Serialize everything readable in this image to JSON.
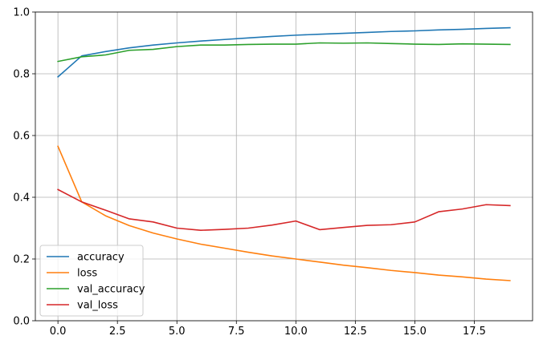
{
  "chart_data": {
    "type": "line",
    "title": "",
    "xlabel": "",
    "ylabel": "",
    "xlim": [
      -0.95,
      19.95
    ],
    "ylim": [
      0,
      1.0
    ],
    "grid": true,
    "legend_position": "lower-left",
    "x": [
      0,
      1,
      2,
      3,
      4,
      5,
      6,
      7,
      8,
      9,
      10,
      11,
      12,
      13,
      14,
      15,
      16,
      17,
      18,
      19
    ],
    "xticks": [
      "0.0",
      "2.5",
      "5.0",
      "7.5",
      "10.0",
      "12.5",
      "15.0",
      "17.5"
    ],
    "xtick_values": [
      0,
      2.5,
      5,
      7.5,
      10,
      12.5,
      15,
      17.5
    ],
    "yticks": [
      "0.0",
      "0.2",
      "0.4",
      "0.6",
      "0.8",
      "1.0"
    ],
    "ytick_values": [
      0,
      0.2,
      0.4,
      0.6,
      0.8,
      1.0
    ],
    "series": [
      {
        "name": "accuracy",
        "color": "#1f77b4",
        "values": [
          0.79,
          0.858,
          0.872,
          0.884,
          0.893,
          0.9,
          0.906,
          0.911,
          0.916,
          0.921,
          0.925,
          0.928,
          0.931,
          0.934,
          0.937,
          0.939,
          0.942,
          0.944,
          0.947,
          0.949
        ]
      },
      {
        "name": "loss",
        "color": "#ff7f0e",
        "values": [
          0.565,
          0.385,
          0.34,
          0.308,
          0.284,
          0.265,
          0.248,
          0.235,
          0.222,
          0.21,
          0.2,
          0.19,
          0.18,
          0.172,
          0.163,
          0.156,
          0.148,
          0.142,
          0.135,
          0.13
        ]
      },
      {
        "name": "val_accuracy",
        "color": "#2ca02c",
        "values": [
          0.84,
          0.855,
          0.861,
          0.876,
          0.879,
          0.888,
          0.893,
          0.893,
          0.895,
          0.896,
          0.896,
          0.9,
          0.899,
          0.9,
          0.898,
          0.896,
          0.895,
          0.897,
          0.896,
          0.895
        ]
      },
      {
        "name": "val_loss",
        "color": "#d62728",
        "values": [
          0.425,
          0.385,
          0.358,
          0.33,
          0.32,
          0.3,
          0.293,
          0.296,
          0.3,
          0.31,
          0.323,
          0.295,
          0.302,
          0.309,
          0.311,
          0.32,
          0.353,
          0.362,
          0.376,
          0.373
        ]
      }
    ]
  }
}
